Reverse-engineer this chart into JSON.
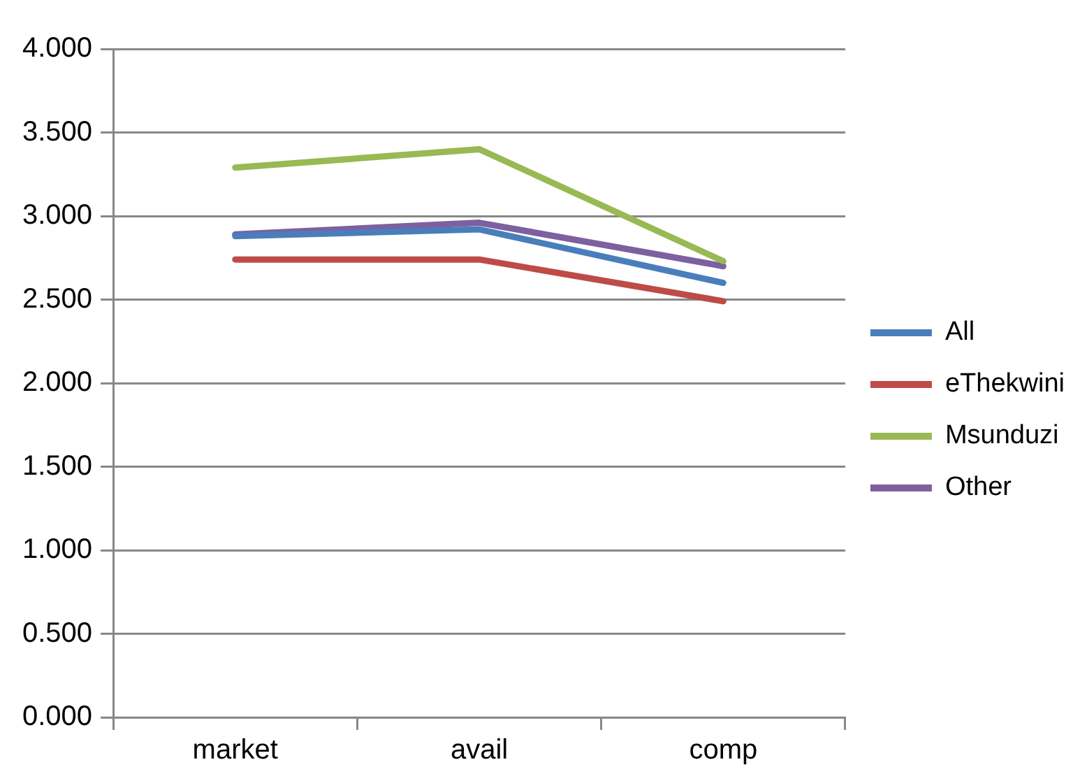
{
  "chart_data": {
    "type": "line",
    "categories": [
      "market",
      "avail",
      "comp"
    ],
    "series": [
      {
        "name": "All",
        "color": "#4a7ebb",
        "values": [
          2.88,
          2.92,
          2.6
        ]
      },
      {
        "name": "eThekwini",
        "color": "#be4b48",
        "values": [
          2.74,
          2.74,
          2.49
        ]
      },
      {
        "name": "Msunduzi",
        "color": "#98b954",
        "values": [
          3.29,
          3.4,
          2.73
        ]
      },
      {
        "name": "Other",
        "color": "#7d60a0",
        "values": [
          2.89,
          2.96,
          2.7
        ]
      }
    ],
    "ylim": [
      0,
      4
    ],
    "yticks": [
      {
        "value": 0,
        "label": "0.000"
      },
      {
        "value": 0.5,
        "label": "0.500"
      },
      {
        "value": 1,
        "label": "1.000"
      },
      {
        "value": 1.5,
        "label": "1.500"
      },
      {
        "value": 2,
        "label": "2.000"
      },
      {
        "value": 2.5,
        "label": "2.500"
      },
      {
        "value": 3,
        "label": "3.000"
      },
      {
        "value": 3.5,
        "label": "3.500"
      },
      {
        "value": 4,
        "label": "4.000"
      }
    ],
    "grid": "y",
    "legend": "right",
    "marker": "none",
    "line_style": "solid"
  }
}
